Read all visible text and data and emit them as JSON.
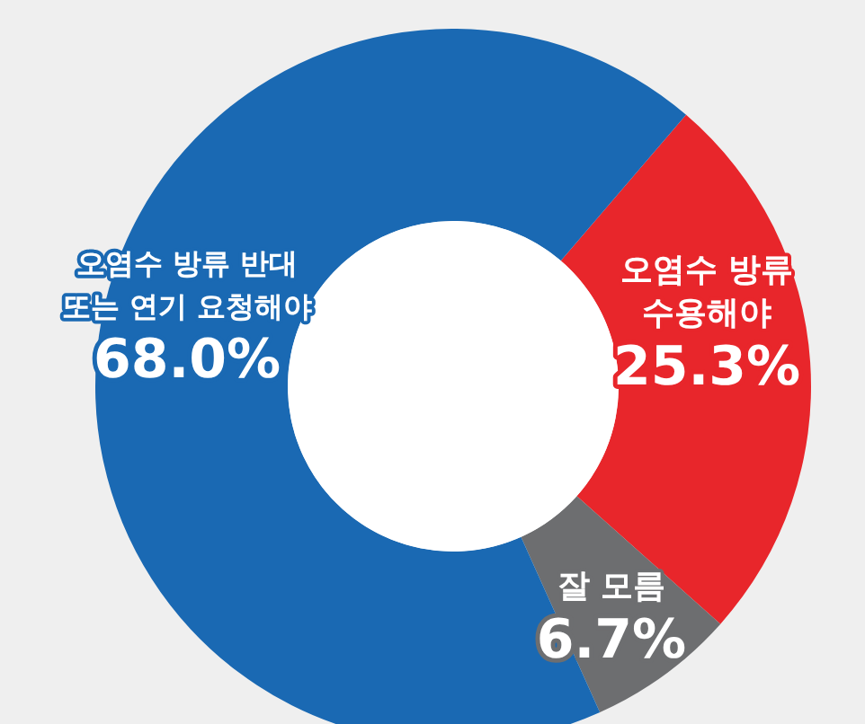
{
  "chart_data": {
    "type": "donut",
    "categories": [
      "오염수 방류 수용해야",
      "잘 모름",
      "오염수 방류 반대 또는 연기 요청해야"
    ],
    "values": [
      25.3,
      6.7,
      68.0
    ],
    "value_labels": [
      "25.3%",
      "6.7%",
      "68.0%"
    ],
    "colors": [
      "#e8262b",
      "#6d6e70",
      "#1a69b3"
    ]
  }
}
